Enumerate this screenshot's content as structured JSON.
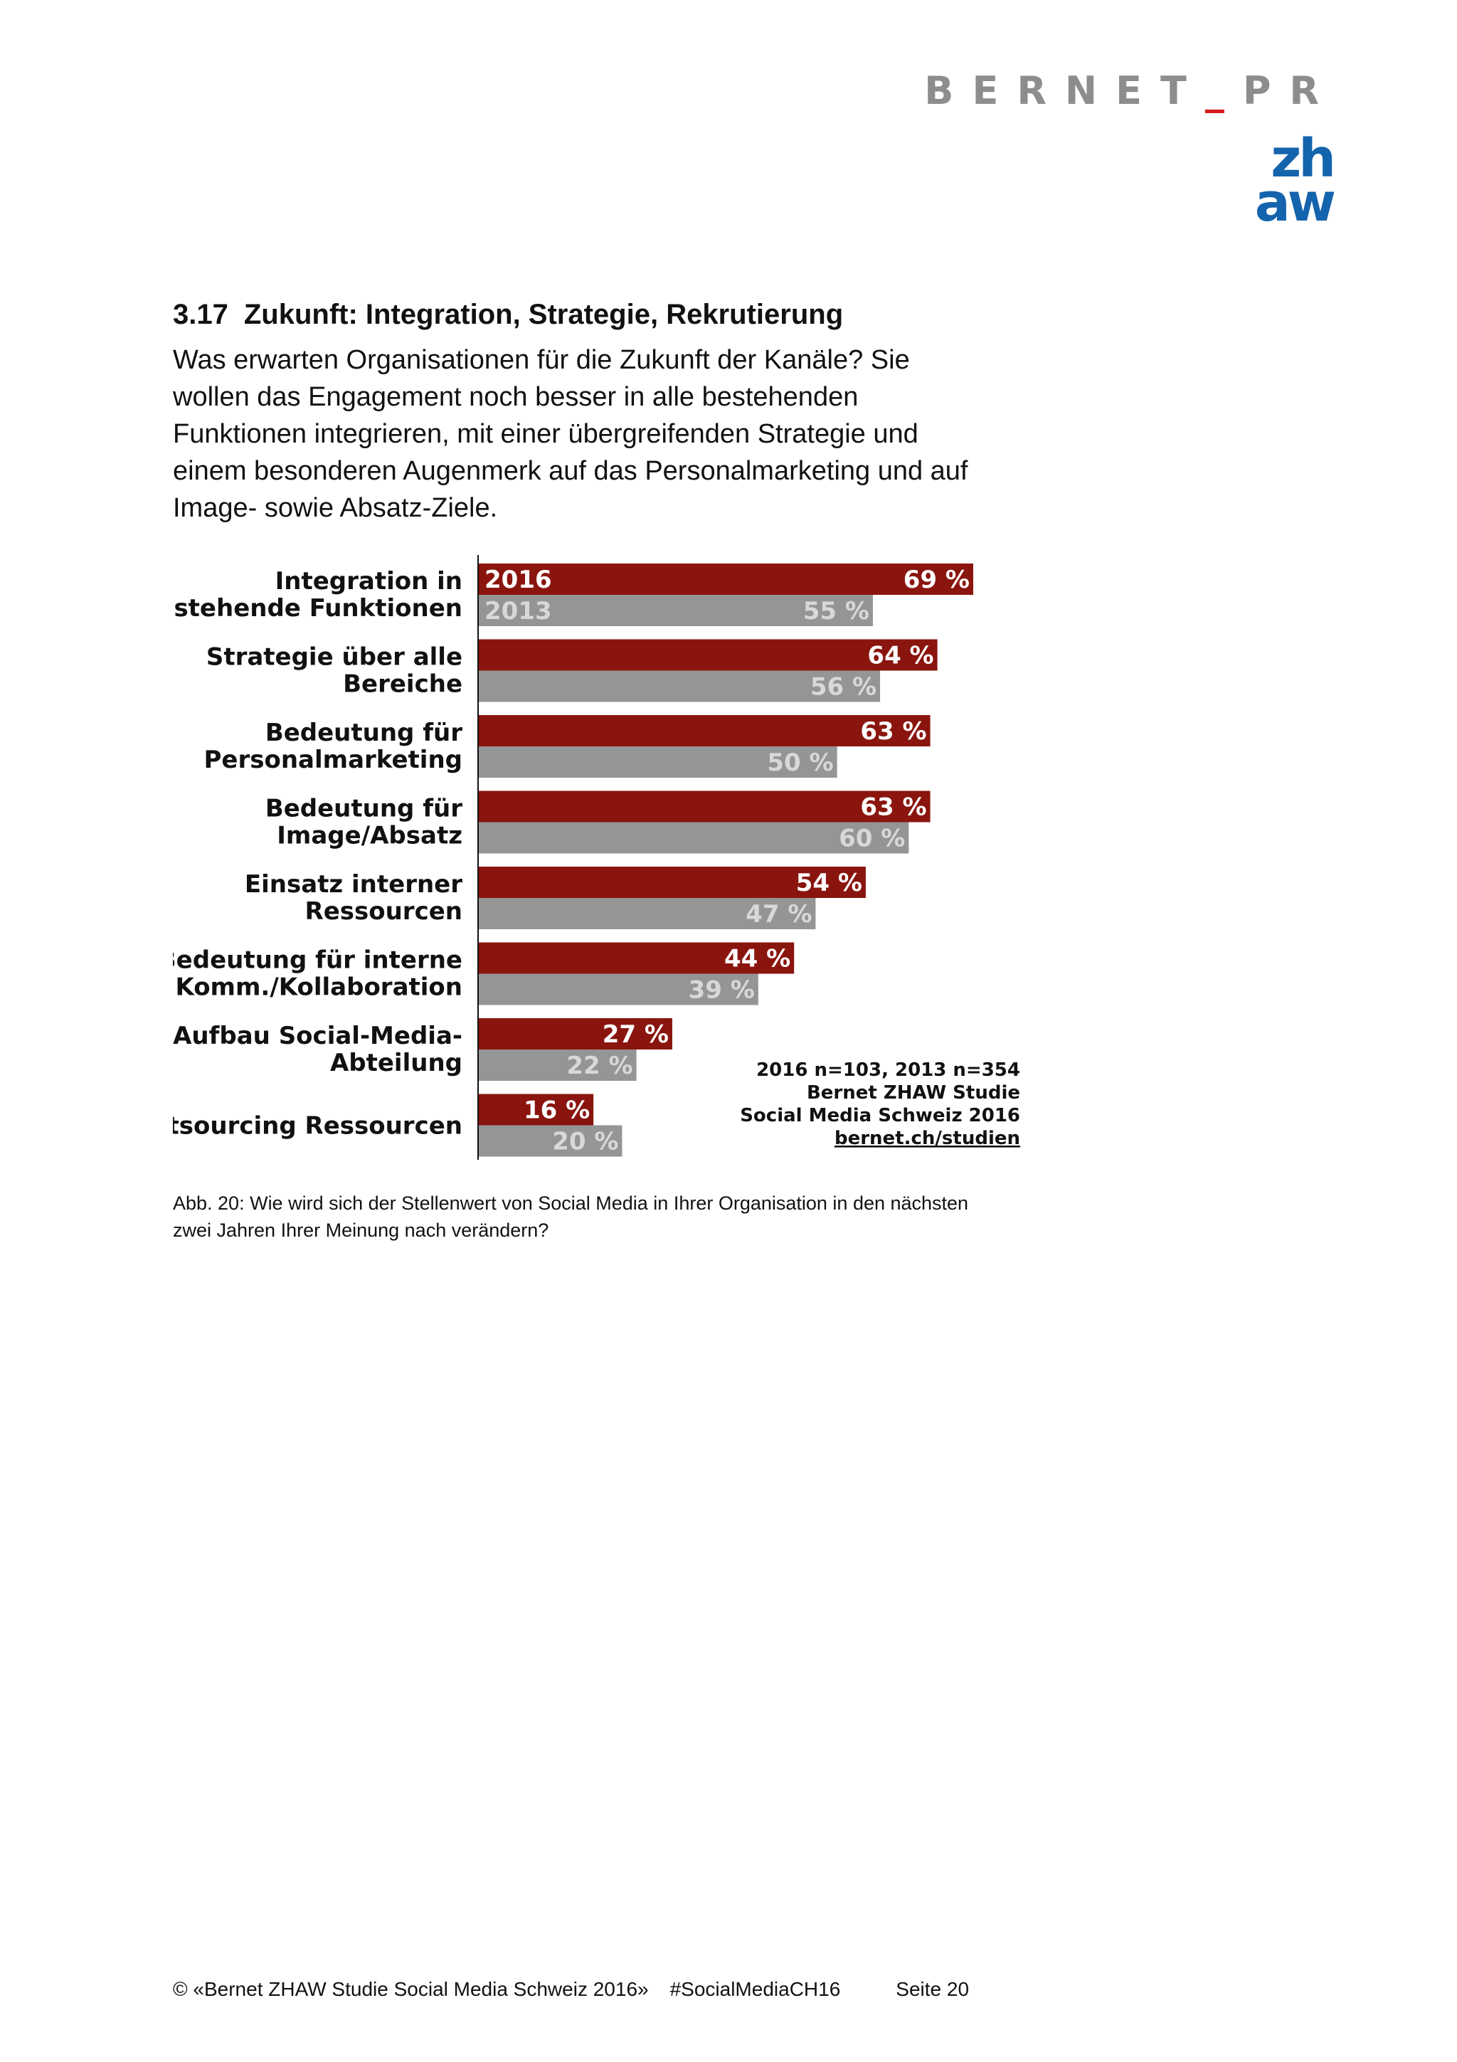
{
  "header": {
    "logo_bernet": "BERNET",
    "logo_bernet_sep": "_",
    "logo_bernet_pr": "PR",
    "logo_zhaw_top": "zh",
    "logo_zhaw_bottom": "aw",
    "zhaw_color": "#1463ad",
    "bernet_color": "#8d8d8d",
    "bernet_accent": "#d6181f"
  },
  "section": {
    "number": "3.17",
    "title": "Zukunft: Integration, Strategie, Rekrutierung",
    "intro": "Was erwarten Organisationen für die Zukunft der Kanäle? Sie wollen das Engagement noch besser in alle bestehenden Funktionen integrieren, mit einer übergreifenden Strategie und einem besonderen Augenmerk auf das Personalmarketing und auf Image- sowie Absatz-Ziele."
  },
  "chart_data": {
    "type": "bar",
    "orientation": "horizontal",
    "categories": [
      [
        "Integration in",
        "bestehende Funktionen"
      ],
      [
        "Strategie über alle",
        "Bereiche"
      ],
      [
        "Bedeutung für",
        "Personalmarketing"
      ],
      [
        "Bedeutung für",
        "Image/Absatz"
      ],
      [
        "Einsatz interner",
        "Ressourcen"
      ],
      [
        "Bedeutung für interne",
        "Komm./Kollaboration"
      ],
      [
        "Aufbau Social-Media-",
        "Abteilung"
      ],
      [
        "Outsourcing Ressourcen"
      ]
    ],
    "series": [
      {
        "name": "2016",
        "color": "#8a150e",
        "values": [
          69,
          64,
          63,
          63,
          54,
          44,
          27,
          16
        ],
        "labels": [
          "69 %",
          "64 %",
          "63 %",
          "63 %",
          "54 %",
          "44 %",
          "27 %",
          "16 %"
        ]
      },
      {
        "name": "2013",
        "color": "#959595",
        "values": [
          55,
          56,
          50,
          60,
          47,
          39,
          22,
          20
        ],
        "labels": [
          "55 %",
          "56 %",
          "50 %",
          "60 %",
          "47 %",
          "39 %",
          "22 %",
          "20 %"
        ]
      }
    ],
    "xlim": [
      0,
      100
    ],
    "legend": "in first bar",
    "annotations": [
      "2016 n=103, 2013 n=354",
      "Bernet ZHAW Studie",
      "Social Media Schweiz 2016",
      "bernet.ch/studien"
    ]
  },
  "caption": "Abb. 20: Wie wird sich der Stellenwert von Social Media in Ihrer Organisation in den nächsten zwei Jahren Ihrer Meinung nach verändern?",
  "footer": {
    "copyright": "© «Bernet ZHAW Studie Social Media Schweiz 2016»",
    "hashtag": "#SocialMediaCH16",
    "page": "Seite 20"
  }
}
